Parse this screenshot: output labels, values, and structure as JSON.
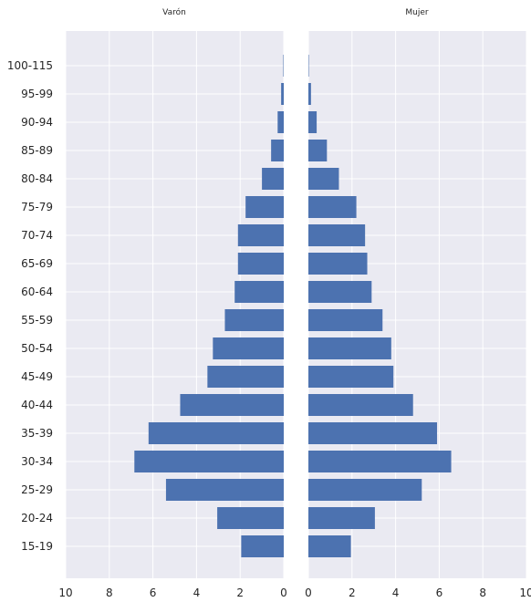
{
  "chart_data": {
    "type": "bar",
    "orientation": "horizontal",
    "categories": [
      "100-115",
      "95-99",
      "90-94",
      "85-89",
      "80-84",
      "75-79",
      "70-74",
      "65-69",
      "60-64",
      "55-59",
      "50-54",
      "45-49",
      "40-44",
      "35-39",
      "30-34",
      "25-29",
      "20-24",
      "15-19"
    ],
    "series": [
      {
        "name": "Varón",
        "values": [
          0.02,
          0.12,
          0.28,
          0.58,
          1.0,
          1.75,
          2.1,
          2.1,
          2.25,
          2.7,
          3.25,
          3.5,
          4.75,
          6.2,
          6.85,
          5.4,
          3.05,
          1.95
        ]
      },
      {
        "name": "Mujer",
        "values": [
          0.02,
          0.12,
          0.38,
          0.85,
          1.4,
          2.2,
          2.6,
          2.7,
          2.9,
          3.4,
          3.8,
          3.9,
          4.8,
          5.9,
          6.55,
          5.2,
          3.05,
          1.95
        ]
      }
    ],
    "xlim": [
      0,
      10
    ],
    "xticks": [
      "10",
      "8",
      "6",
      "4",
      "2",
      "0",
      "0",
      "2",
      "4",
      "6",
      "8",
      "10"
    ],
    "grid": true,
    "colors": {
      "bar": "#4c72b0",
      "background": "#eaeaf2",
      "grid": "#ffffff"
    }
  }
}
